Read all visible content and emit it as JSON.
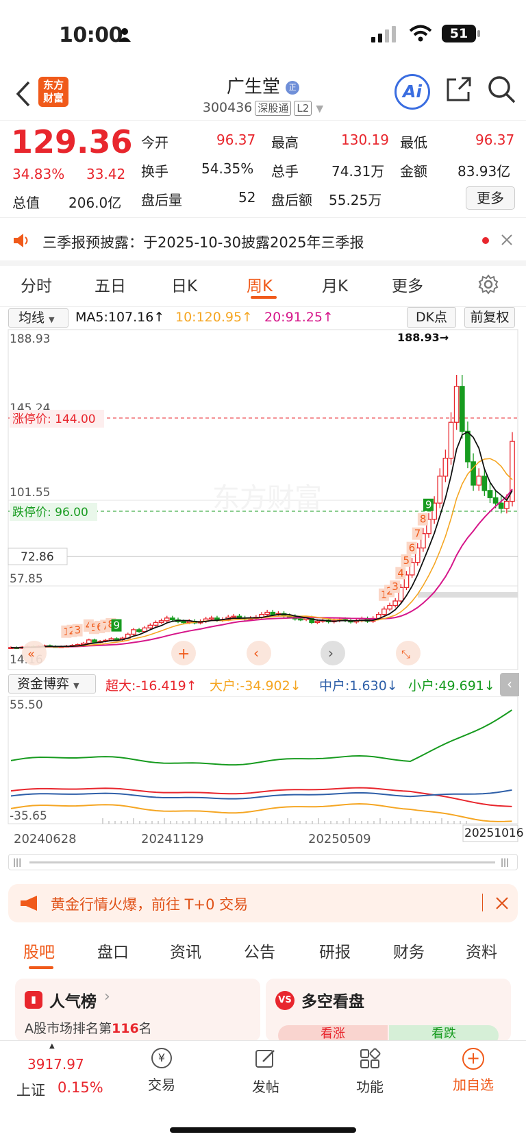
{
  "status": {
    "time": "10:00",
    "battery": "51"
  },
  "header": {
    "title": "广生堂",
    "badge": "正",
    "code": "300436",
    "tag1": "深股通",
    "tag2": "L2",
    "logo_top": "东方",
    "logo_bot": "财富",
    "ai": "Ai"
  },
  "quote": {
    "price": "129.36",
    "pct": "34.83%",
    "chg": "33.42",
    "open_l": "今开",
    "open": "96.37",
    "high_l": "最高",
    "high": "130.19",
    "low_l": "最低",
    "low": "96.37",
    "turn_l": "换手",
    "turn": "54.35%",
    "vol_l": "总手",
    "vol": "74.31万",
    "amt_l": "金额",
    "amt": "83.93亿",
    "cap_l": "总值",
    "cap": "206.0亿",
    "ahv_l": "盘后量",
    "ahv": "52",
    "aha_l": "盘后额",
    "aha": "55.25万",
    "more": "更多"
  },
  "notice": {
    "text": "三季报预披露：于2025-10-30披露2025年三季报"
  },
  "tabs": [
    "分时",
    "五日",
    "日K",
    "周K",
    "月K",
    "更多"
  ],
  "ma": {
    "sel": "均线",
    "ma5": "MA5:107.16↑",
    "ma10": "10:120.95↑",
    "ma20": "20:91.25↑",
    "dk": "DK点",
    "fq": "前复权"
  },
  "kchart": {
    "y_top": "188.93",
    "y_145": "145.24",
    "y_101": "101.55",
    "y_72": "72.86",
    "y_57": "57.85",
    "y_bot": "14.16",
    "high_mark": "188.93→",
    "limit_up": "涨停价: 144.00",
    "limit_down": "跌停价: 96.00",
    "watermark": "东方财富"
  },
  "fund": {
    "sel": "资金博弈",
    "super": "超大:-16.419↑",
    "big": "大户:-34.902↓",
    "mid": "中户:1.630↓",
    "small": "小户:49.691↓",
    "y_top": "55.50",
    "y_bot": "-35.65",
    "dates": [
      "20240628",
      "20241129",
      "20250509",
      "20251016"
    ]
  },
  "ad": {
    "text": "黄金行情火爆，前往 T+0 交易"
  },
  "nav": [
    "股吧",
    "盘口",
    "资讯",
    "公告",
    "研报",
    "财务",
    "资料"
  ],
  "cards": {
    "hot": "人气榜",
    "hot_sub_a": "A股市场排名第",
    "hot_rank": "116",
    "hot_sub_b": "名",
    "vs": "多空看盘",
    "up": "看涨",
    "down": "看跌"
  },
  "bottom": {
    "index": "3917.97",
    "name": "上证",
    "pct": "0.15%",
    "trade": "交易",
    "post": "发帖",
    "func": "功能",
    "add": "加自选"
  }
}
